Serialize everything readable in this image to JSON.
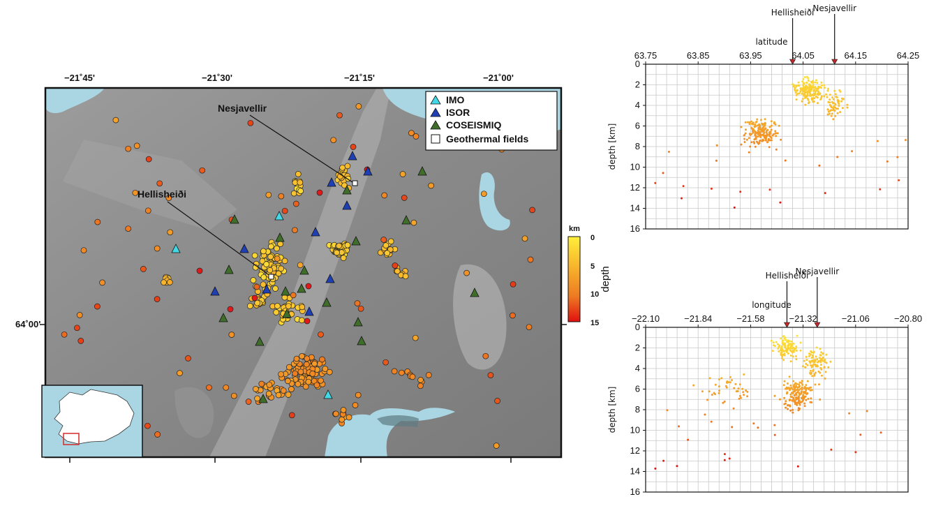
{
  "map": {
    "lon_ticks_top": [
      "−21˚45'",
      "−21˚30'",
      "−21˚15'",
      "−21˚00'"
    ],
    "lat_tick_left": "64˚00'",
    "annotations": {
      "nesjavellir": "Nesjavellir",
      "hellisheidi": "Hellisheiði"
    },
    "legend": [
      {
        "label": "IMO",
        "symbol": "triangle",
        "color": "#43d8e6"
      },
      {
        "label": "ISOR",
        "symbol": "triangle",
        "color": "#1f3fb5"
      },
      {
        "label": "COSEISMIQ",
        "symbol": "triangle",
        "color": "#3f6e2a"
      },
      {
        "label": "Geothermal fields",
        "symbol": "square",
        "color": "#ffffff"
      }
    ],
    "colorbar": {
      "unit": "km",
      "label": "depth",
      "ticks": [
        "0",
        "5",
        "10",
        "15"
      ]
    },
    "colors": {
      "water": "#a9d6e2",
      "relief": "#8a8a8a"
    }
  },
  "plots": [
    {
      "type": "scatter",
      "xlabel": "latitude",
      "ylabel": "depth [km]",
      "xticks": [
        "63.75",
        "63.85",
        "63.95",
        "64.05",
        "64.15",
        "64.25"
      ],
      "yticks": [
        "0",
        "2",
        "4",
        "6",
        "8",
        "10",
        "12",
        "14",
        "16"
      ],
      "markers": [
        {
          "label": "Hellisheiði",
          "x": 64.03
        },
        {
          "label": "Nesjavellir",
          "x": 64.11
        }
      ],
      "xlim": [
        63.75,
        64.25
      ],
      "ylim": [
        0,
        16
      ],
      "grid": true
    },
    {
      "type": "scatter",
      "xlabel": "longitude",
      "ylabel": "depth [km]",
      "xticks": [
        "−22.10",
        "−21.84",
        "−21.58",
        "−21.32",
        "−21.06",
        "−20.80"
      ],
      "yticks": [
        "0",
        "2",
        "4",
        "6",
        "8",
        "10",
        "12",
        "14",
        "16"
      ],
      "markers": [
        {
          "label": "Hellisheiði",
          "x": -21.4
        },
        {
          "label": "Nesjavellir",
          "x": -21.25
        }
      ],
      "xlim": [
        -22.1,
        -20.8
      ],
      "ylim": [
        0,
        16
      ],
      "grid": true
    }
  ]
}
